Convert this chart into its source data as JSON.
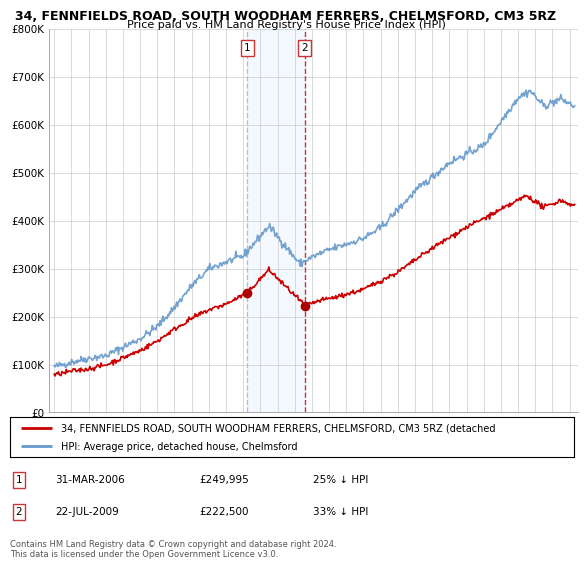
{
  "title": "34, FENNFIELDS ROAD, SOUTH WOODHAM FERRERS, CHELMSFORD, CM3 5RZ",
  "subtitle": "Price paid vs. HM Land Registry's House Price Index (HPI)",
  "legend_line1": "34, FENNFIELDS ROAD, SOUTH WOODHAM FERRERS, CHELMSFORD, CM3 5RZ (detached",
  "legend_line2": "HPI: Average price, detached house, Chelmsford",
  "sale1_date": "31-MAR-2006",
  "sale1_price": "£249,995",
  "sale1_hpi": "25% ↓ HPI",
  "sale2_date": "22-JUL-2009",
  "sale2_price": "£222,500",
  "sale2_hpi": "33% ↓ HPI",
  "footer": "Contains HM Land Registry data © Crown copyright and database right 2024.\nThis data is licensed under the Open Government Licence v3.0.",
  "red_color": "#cc0000",
  "blue_color": "#6699cc",
  "marker_color": "#aa0000",
  "vline1_color": "#bbbbcc",
  "vline2_color": "#cc3333",
  "shade_color": "#ddeeff",
  "grid_color": "#cccccc",
  "ylim": [
    0,
    800000
  ],
  "xlim_start": 1994.7,
  "xlim_end": 2025.5,
  "sale1_x": 2006.25,
  "sale1_y": 249995,
  "sale2_x": 2009.58,
  "sale2_y": 222500
}
